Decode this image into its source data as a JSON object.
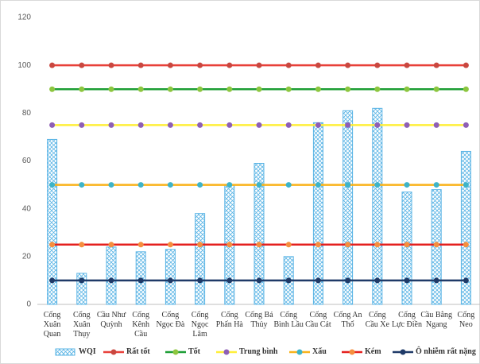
{
  "chart_data": {
    "type": "bar",
    "categories": [
      "Cống Xuân Quan",
      "Cống Xuân Thụy",
      "Cầu Như Quỳnh",
      "Cống Kênh Cầu",
      "Cống Ngọc Đà",
      "Cống Ngọc Lâm",
      "Cống Phấn Hà",
      "Cống Bá Thủy",
      "Cống Bình Lầu",
      "Cống Cầu Cát",
      "Cống An Thổ",
      "Cống Cầu Xe",
      "Cống Lực Điền",
      "Cầu Bằng Ngang",
      "Cống Neo"
    ],
    "series": [
      {
        "name": "WQI",
        "type": "bar",
        "color": "#5ab4e5",
        "values": [
          69,
          13,
          24,
          22,
          23,
          38,
          50,
          59,
          20,
          76,
          81,
          82,
          47,
          48,
          64
        ]
      },
      {
        "name": "Rất tốt",
        "type": "line",
        "color": "#e8413a",
        "marker_color": "#c9473f",
        "values": [
          100,
          100,
          100,
          100,
          100,
          100,
          100,
          100,
          100,
          100,
          100,
          100,
          100,
          100,
          100
        ]
      },
      {
        "name": "Tốt",
        "type": "line",
        "color": "#1d9e35",
        "marker_color": "#8dc63f",
        "values": [
          90,
          90,
          90,
          90,
          90,
          90,
          90,
          90,
          90,
          90,
          90,
          90,
          90,
          90,
          90
        ]
      },
      {
        "name": "Trung bình",
        "type": "line",
        "color": "#ffef3a",
        "marker_color": "#8e5fb5",
        "values": [
          75,
          75,
          75,
          75,
          75,
          75,
          75,
          75,
          75,
          75,
          75,
          75,
          75,
          75,
          75
        ]
      },
      {
        "name": "Xấu",
        "type": "line",
        "color": "#f9b21a",
        "marker_color": "#3eb4c8",
        "values": [
          50,
          50,
          50,
          50,
          50,
          50,
          50,
          50,
          50,
          50,
          50,
          50,
          50,
          50,
          50
        ]
      },
      {
        "name": "Kém",
        "type": "line",
        "color": "#e4201f",
        "marker_color": "#f58f3e",
        "values": [
          25,
          25,
          25,
          25,
          25,
          25,
          25,
          25,
          25,
          25,
          25,
          25,
          25,
          25,
          25
        ]
      },
      {
        "name": "Ô nhiễm rất nặng",
        "type": "line",
        "color": "#1f3a68",
        "marker_color": "#1f3a68",
        "values": [
          10,
          10,
          10,
          10,
          10,
          10,
          10,
          10,
          10,
          10,
          10,
          10,
          10,
          10,
          10
        ]
      }
    ],
    "ylim": [
      0,
      120
    ],
    "yticks": [
      0,
      20,
      40,
      60,
      80,
      100,
      120
    ],
    "grid": false
  }
}
